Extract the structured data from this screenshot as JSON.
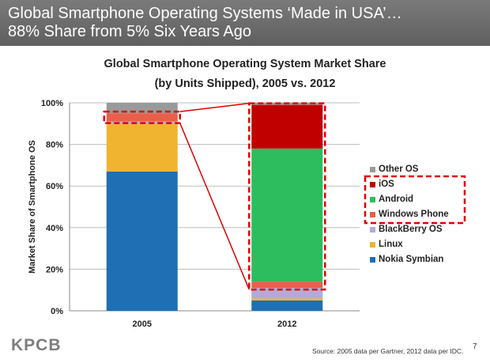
{
  "header": {
    "title_line1": "Global Smartphone Operating Systems ‘Made in USA’…",
    "title_line2": "88% Share from 5% Six Years Ago"
  },
  "chart_data": {
    "type": "bar",
    "stacked": true,
    "title": "Global Smartphone Operating System Market Share",
    "subtitle": "(by Units Shipped), 2005 vs. 2012",
    "ylabel": "Market Share of Smartphone OS",
    "xlabel": "",
    "ylim": [
      0,
      100
    ],
    "yticks": [
      "0%",
      "20%",
      "40%",
      "60%",
      "80%",
      "100%"
    ],
    "grid": true,
    "legend_position": "right",
    "categories": [
      "2005",
      "2012"
    ],
    "series": [
      {
        "name": "Nokia Symbian",
        "color": "#1f6fb4",
        "values": [
          67,
          5
        ]
      },
      {
        "name": "Linux",
        "color": "#f0b430",
        "values": [
          23,
          1
        ]
      },
      {
        "name": "BlackBerry OS",
        "color": "#b3aad8",
        "values": [
          1,
          5
        ]
      },
      {
        "name": "Windows Phone",
        "color": "#e8604a",
        "values": [
          4,
          3
        ]
      },
      {
        "name": "Android",
        "color": "#2dbd5e",
        "values": [
          0,
          64
        ]
      },
      {
        "name": "iOS",
        "color": "#c00000",
        "values": [
          0,
          21
        ]
      },
      {
        "name": "Other OS",
        "color": "#9a9a9a",
        "values": [
          5,
          1
        ]
      }
    ],
    "legend_order": [
      "Other OS",
      "iOS",
      "Android",
      "Windows Phone",
      "BlackBerry OS",
      "Linux",
      "Nokia Symbian"
    ],
    "highlight": {
      "color": "#e00000",
      "style": "dashed",
      "series": [
        "Windows Phone",
        "Android",
        "iOS"
      ]
    }
  },
  "footer": {
    "logo": "KPCB",
    "source": "Source: 2005 data per Gartner, 2012 data per IDC.",
    "page_number": "7"
  }
}
